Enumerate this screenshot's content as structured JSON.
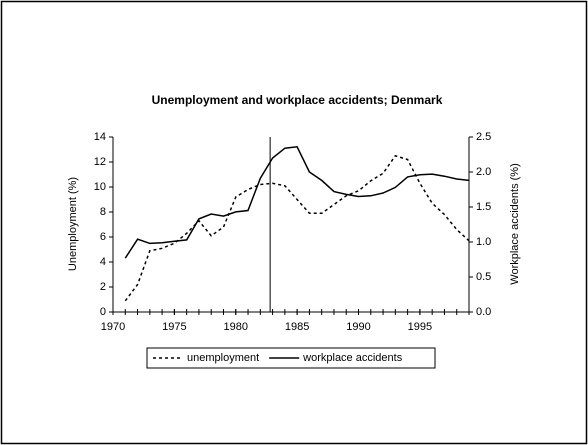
{
  "chart_data": {
    "type": "line",
    "title": "Unemployment and workplace accidents; Denmark",
    "ylabel": "Unemployment (%)",
    "y2label": "Workplace accidents (%)",
    "x": [
      1971,
      1972,
      1973,
      1974,
      1975,
      1976,
      1977,
      1978,
      1979,
      1980,
      1981,
      1982,
      1983,
      1984,
      1985,
      1986,
      1987,
      1988,
      1989,
      1990,
      1991,
      1992,
      1993,
      1994,
      1995,
      1996,
      1997,
      1998,
      1999
    ],
    "series": [
      {
        "name": "unemployment",
        "color": "#000000",
        "dash": true,
        "values": [
          0.9,
          2.2,
          4.9,
          5.1,
          5.5,
          6.3,
          7.3,
          6.1,
          6.8,
          9.2,
          9.8,
          10.2,
          10.3,
          10.1,
          9.0,
          7.9,
          7.9,
          8.6,
          9.3,
          9.7,
          10.5,
          11.1,
          12.5,
          12.2,
          10.3,
          8.7,
          7.8,
          6.6,
          5.7
        ]
      },
      {
        "name": "workplace accidents",
        "color": "#000000",
        "dash": false,
        "axis": "y2",
        "values": [
          0.77,
          1.04,
          0.98,
          0.99,
          1.01,
          1.03,
          1.33,
          1.4,
          1.37,
          1.43,
          1.45,
          1.91,
          2.2,
          2.34,
          2.36,
          2.0,
          1.88,
          1.72,
          1.68,
          1.65,
          1.66,
          1.7,
          1.78,
          1.93,
          1.96,
          1.97,
          1.94,
          1.9,
          1.88
        ]
      }
    ],
    "vline": 1982.8,
    "xlim": [
      1970,
      1999
    ],
    "xticks": [
      1970,
      1975,
      1980,
      1985,
      1990,
      1995
    ],
    "ylim": [
      0,
      14
    ],
    "yticks": [
      0,
      2,
      4,
      6,
      8,
      10,
      12,
      14
    ],
    "y2lim": [
      0,
      2.5
    ],
    "y2ticks": [
      {
        "value": 0,
        "label": "0.0"
      },
      0.5,
      {
        "value": 1,
        "label": "1.0"
      },
      1.5,
      {
        "value": 2,
        "label": "2.0"
      },
      2.5
    ],
    "grid": false,
    "legend": "bottom"
  }
}
